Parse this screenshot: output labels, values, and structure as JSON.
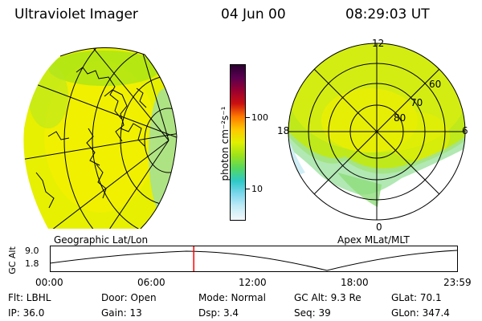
{
  "header": {
    "title": "Ultraviolet Imager",
    "date": "04 Jun 00",
    "time": "08:29:03 UT"
  },
  "left_map": {
    "caption": "Geographic Lat/Lon"
  },
  "right_map": {
    "caption": "Apex MLat/MLT",
    "mlt_labels": [
      "12",
      "18",
      "6",
      "0"
    ],
    "mlat_labels": [
      "60",
      "70",
      "80"
    ]
  },
  "colorbar": {
    "unit_label": "photon cm⁻²s⁻¹",
    "tick_labels": [
      "100",
      "10"
    ],
    "colors": [
      "#2a0030",
      "#5c0050",
      "#9a0030",
      "#cc1010",
      "#ff7a00",
      "#ffc800",
      "#e0f000",
      "#9ee21a",
      "#55d860",
      "#2ec9c8",
      "#7fd8ee",
      "#c4ecf6",
      "#f2f8fa"
    ]
  },
  "altitude_plot": {
    "ylabel": "GC Alt",
    "y_ticks": [
      "9.0",
      "1.8"
    ],
    "x_ticks": [
      "00:00",
      "06:00",
      "12:00",
      "18:00",
      "23:59"
    ],
    "current_time_fraction": 0.3535,
    "marker_color": "#ff0000"
  },
  "info": {
    "row1": [
      "Flt: LBHL",
      "Door: Open",
      "Mode: Normal",
      "GC Alt: 9.3 Re",
      "GLat:  70.1"
    ],
    "row2": [
      "IP: 36.0",
      "Gain: 13",
      "Dsp:     3.4",
      "Seq: 39",
      "GLon: 347.4"
    ]
  }
}
